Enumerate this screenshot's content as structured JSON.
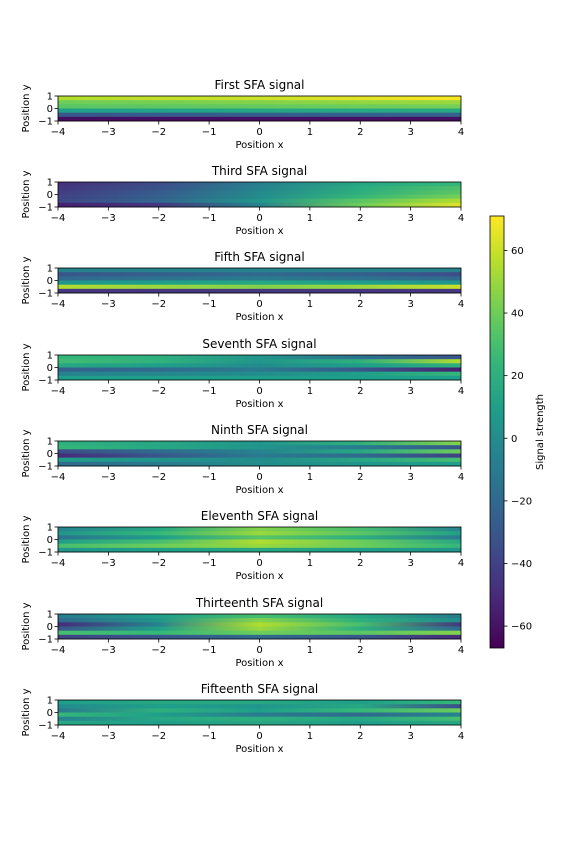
{
  "chart_data": {
    "type": "heatmap",
    "colormap": "viridis",
    "panels": [
      {
        "title": "First SFA signal",
        "xlabel": "Position x",
        "ylabel": "Position y",
        "xlim": [
          -4,
          4
        ],
        "ylim": [
          -1,
          1
        ],
        "xticks": [
          -4,
          -3,
          -2,
          -1,
          0,
          1,
          2,
          3,
          4
        ],
        "yticks": [
          -1,
          0,
          1
        ],
        "x": [
          -4,
          -2,
          0,
          2,
          4
        ],
        "y": [
          1,
          0.6,
          0.2,
          -0.2,
          -0.6,
          -1
        ],
        "values": [
          [
            55,
            58,
            60,
            65,
            70
          ],
          [
            40,
            42,
            45,
            48,
            50
          ],
          [
            35,
            36,
            38,
            40,
            42
          ],
          [
            10,
            12,
            14,
            15,
            16
          ],
          [
            -30,
            -28,
            -26,
            -25,
            -24
          ],
          [
            -62,
            -62,
            -62,
            -62,
            -62
          ]
        ]
      },
      {
        "title": "Third SFA signal",
        "xlabel": "Position x",
        "ylabel": "Position y",
        "xlim": [
          -4,
          4
        ],
        "ylim": [
          -1,
          1
        ],
        "xticks": [
          -4,
          -3,
          -2,
          -1,
          0,
          1,
          2,
          3,
          4
        ],
        "yticks": [
          -1,
          0,
          1
        ],
        "x": [
          -4,
          -2,
          0,
          2,
          4
        ],
        "y": [
          1,
          0.6,
          0.2,
          -0.2,
          -0.6,
          -1
        ],
        "values": [
          [
            -48,
            -35,
            -8,
            15,
            25
          ],
          [
            -45,
            -32,
            -5,
            18,
            32
          ],
          [
            -42,
            -28,
            -2,
            20,
            35
          ],
          [
            -40,
            -25,
            0,
            25,
            42
          ],
          [
            -38,
            -22,
            5,
            35,
            55
          ],
          [
            -55,
            -45,
            -5,
            40,
            65
          ]
        ]
      },
      {
        "title": "Fifth SFA signal",
        "xlabel": "Position x",
        "ylabel": "Position y",
        "xlim": [
          -4,
          4
        ],
        "ylim": [
          -1,
          1
        ],
        "xticks": [
          -4,
          -3,
          -2,
          -1,
          0,
          1,
          2,
          3,
          4
        ],
        "yticks": [
          -1,
          0,
          1
        ],
        "x": [
          -4,
          -2,
          0,
          2,
          4
        ],
        "y": [
          1,
          0.6,
          0.2,
          -0.2,
          -0.6,
          -1
        ],
        "values": [
          [
            -5,
            -5,
            -5,
            -5,
            -5
          ],
          [
            -30,
            -25,
            -20,
            -25,
            -35
          ],
          [
            -20,
            -15,
            -10,
            -15,
            -20
          ],
          [
            5,
            10,
            15,
            10,
            5
          ],
          [
            55,
            50,
            45,
            50,
            60
          ],
          [
            -45,
            -45,
            -45,
            -45,
            -45
          ]
        ]
      },
      {
        "title": "Seventh SFA signal",
        "xlabel": "Position x",
        "ylabel": "Position y",
        "xlim": [
          -4,
          4
        ],
        "ylim": [
          -1,
          1
        ],
        "xticks": [
          -4,
          -3,
          -2,
          -1,
          0,
          1,
          2,
          3,
          4
        ],
        "yticks": [
          -1,
          0,
          1
        ],
        "x": [
          -4,
          -2,
          0,
          2,
          4
        ],
        "y": [
          1,
          0.6,
          0.2,
          -0.2,
          -0.6,
          -1
        ],
        "values": [
          [
            25,
            20,
            5,
            -15,
            -30
          ],
          [
            28,
            22,
            5,
            20,
            55
          ],
          [
            15,
            10,
            0,
            10,
            20
          ],
          [
            -25,
            -20,
            -10,
            -30,
            -55
          ],
          [
            -5,
            -3,
            0,
            10,
            25
          ],
          [
            10,
            10,
            10,
            10,
            10
          ]
        ]
      },
      {
        "title": "Ninth SFA signal",
        "xlabel": "Position x",
        "ylabel": "Position y",
        "xlim": [
          -4,
          4
        ],
        "ylim": [
          -1,
          1
        ],
        "xticks": [
          -4,
          -3,
          -2,
          -1,
          0,
          1,
          2,
          3,
          4
        ],
        "yticks": [
          -1,
          0,
          1
        ],
        "x": [
          -4,
          -2,
          0,
          2,
          4
        ],
        "y": [
          1,
          0.6,
          0.2,
          -0.2,
          -0.6,
          -1
        ],
        "values": [
          [
            20,
            15,
            5,
            20,
            45
          ],
          [
            25,
            15,
            5,
            -10,
            -30
          ],
          [
            -35,
            -20,
            -5,
            15,
            40
          ],
          [
            -50,
            -30,
            -10,
            -20,
            -40
          ],
          [
            10,
            5,
            0,
            15,
            30
          ],
          [
            -20,
            -10,
            0,
            5,
            10
          ]
        ]
      },
      {
        "title": "Eleventh SFA signal",
        "xlabel": "Position x",
        "ylabel": "Position y",
        "xlim": [
          -4,
          4
        ],
        "ylim": [
          -1,
          1
        ],
        "xticks": [
          -4,
          -3,
          -2,
          -1,
          0,
          1,
          2,
          3,
          4
        ],
        "yticks": [
          -1,
          0,
          1
        ],
        "x": [
          -4,
          -2,
          0,
          2,
          4
        ],
        "y": [
          1,
          0.6,
          0.2,
          -0.2,
          -0.6,
          -1
        ],
        "values": [
          [
            -5,
            15,
            45,
            30,
            -5
          ],
          [
            5,
            25,
            50,
            35,
            10
          ],
          [
            -15,
            10,
            35,
            20,
            -10
          ],
          [
            10,
            30,
            55,
            40,
            15
          ],
          [
            30,
            40,
            50,
            40,
            25
          ],
          [
            5,
            10,
            15,
            10,
            5
          ]
        ]
      },
      {
        "title": "Thirteenth SFA signal",
        "xlabel": "Position x",
        "ylabel": "Position y",
        "xlim": [
          -4,
          4
        ],
        "ylim": [
          -1,
          1
        ],
        "xticks": [
          -4,
          -3,
          -2,
          -1,
          0,
          1,
          2,
          3,
          4
        ],
        "yticks": [
          -1,
          0,
          1
        ],
        "x": [
          -4,
          -2,
          0,
          2,
          4
        ],
        "y": [
          1,
          0.6,
          0.2,
          -0.2,
          -0.6,
          -1
        ],
        "values": [
          [
            -10,
            10,
            30,
            15,
            -10
          ],
          [
            -20,
            5,
            45,
            20,
            0
          ],
          [
            -50,
            -5,
            55,
            30,
            -45
          ],
          [
            -30,
            10,
            50,
            20,
            -20
          ],
          [
            30,
            25,
            40,
            35,
            45
          ],
          [
            -40,
            -30,
            -20,
            -30,
            -50
          ]
        ]
      },
      {
        "title": "Fifteenth SFA signal",
        "xlabel": "Position x",
        "ylabel": "Position y",
        "xlim": [
          -4,
          4
        ],
        "ylim": [
          -1,
          1
        ],
        "xticks": [
          -4,
          -3,
          -2,
          -1,
          0,
          1,
          2,
          3,
          4
        ],
        "yticks": [
          -1,
          0,
          1
        ],
        "x": [
          -4,
          -2,
          0,
          2,
          4
        ],
        "y": [
          1,
          0.6,
          0.2,
          -0.2,
          -0.6,
          -1
        ],
        "values": [
          [
            10,
            15,
            15,
            10,
            25
          ],
          [
            0,
            10,
            5,
            15,
            -35
          ],
          [
            -10,
            20,
            10,
            25,
            40
          ],
          [
            25,
            10,
            -10,
            -20,
            -5
          ],
          [
            -5,
            15,
            20,
            15,
            30
          ],
          [
            15,
            10,
            15,
            10,
            15
          ]
        ]
      }
    ],
    "colorbar": {
      "label": "Signal strength",
      "vmin": -67,
      "vmax": 71,
      "ticks": [
        -60,
        -40,
        -20,
        0,
        20,
        40,
        60
      ]
    }
  }
}
